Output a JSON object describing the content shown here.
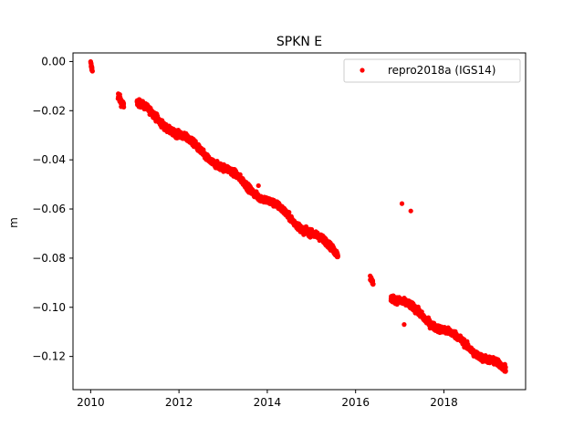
{
  "chart_data": {
    "type": "scatter",
    "title": "SPKN E",
    "xlabel": "",
    "ylabel": "m",
    "xlim": [
      2009.6,
      2019.85
    ],
    "ylim": [
      -0.1335,
      0.0035
    ],
    "x_ticks": [
      2010,
      2012,
      2014,
      2016,
      2018
    ],
    "x_tick_labels": [
      "2010",
      "2012",
      "2014",
      "2016",
      "2018"
    ],
    "y_ticks": [
      0.0,
      -0.02,
      -0.04,
      -0.06,
      -0.08,
      -0.1,
      -0.12
    ],
    "y_tick_labels": [
      "0.00",
      "−0.02",
      "−0.04",
      "−0.06",
      "−0.08",
      "−0.10",
      "−0.12"
    ],
    "grid": false,
    "legend_position": "top-right",
    "series": [
      {
        "name": "repro2018a (IGS14)",
        "color": "#ff0000",
        "marker": "dot",
        "segments": [
          {
            "x_start": 2010.0,
            "x_end": 2010.04,
            "y_start": -0.001,
            "y_end": -0.004,
            "scatter": 0.0015
          },
          {
            "x_start": 2010.62,
            "x_end": 2010.75,
            "y_start": -0.013,
            "y_end": -0.017,
            "scatter": 0.0015
          },
          {
            "x_start": 2011.05,
            "x_end": 2015.6,
            "y_start": -0.017,
            "y_end": -0.078,
            "scatter": 0.0013
          },
          {
            "x_start": 2016.33,
            "x_end": 2016.4,
            "y_start": -0.089,
            "y_end": -0.091,
            "scatter": 0.001
          },
          {
            "x_start": 2016.8,
            "x_end": 2019.4,
            "y_start": -0.095,
            "y_end": -0.126,
            "scatter": 0.0013
          }
        ],
        "outliers": [
          {
            "x": 2010.0,
            "y": 0.0
          },
          {
            "x": 2013.8,
            "y": -0.0505
          },
          {
            "x": 2017.05,
            "y": -0.0578
          },
          {
            "x": 2017.25,
            "y": -0.0608
          },
          {
            "x": 2017.1,
            "y": -0.107
          }
        ]
      }
    ]
  }
}
